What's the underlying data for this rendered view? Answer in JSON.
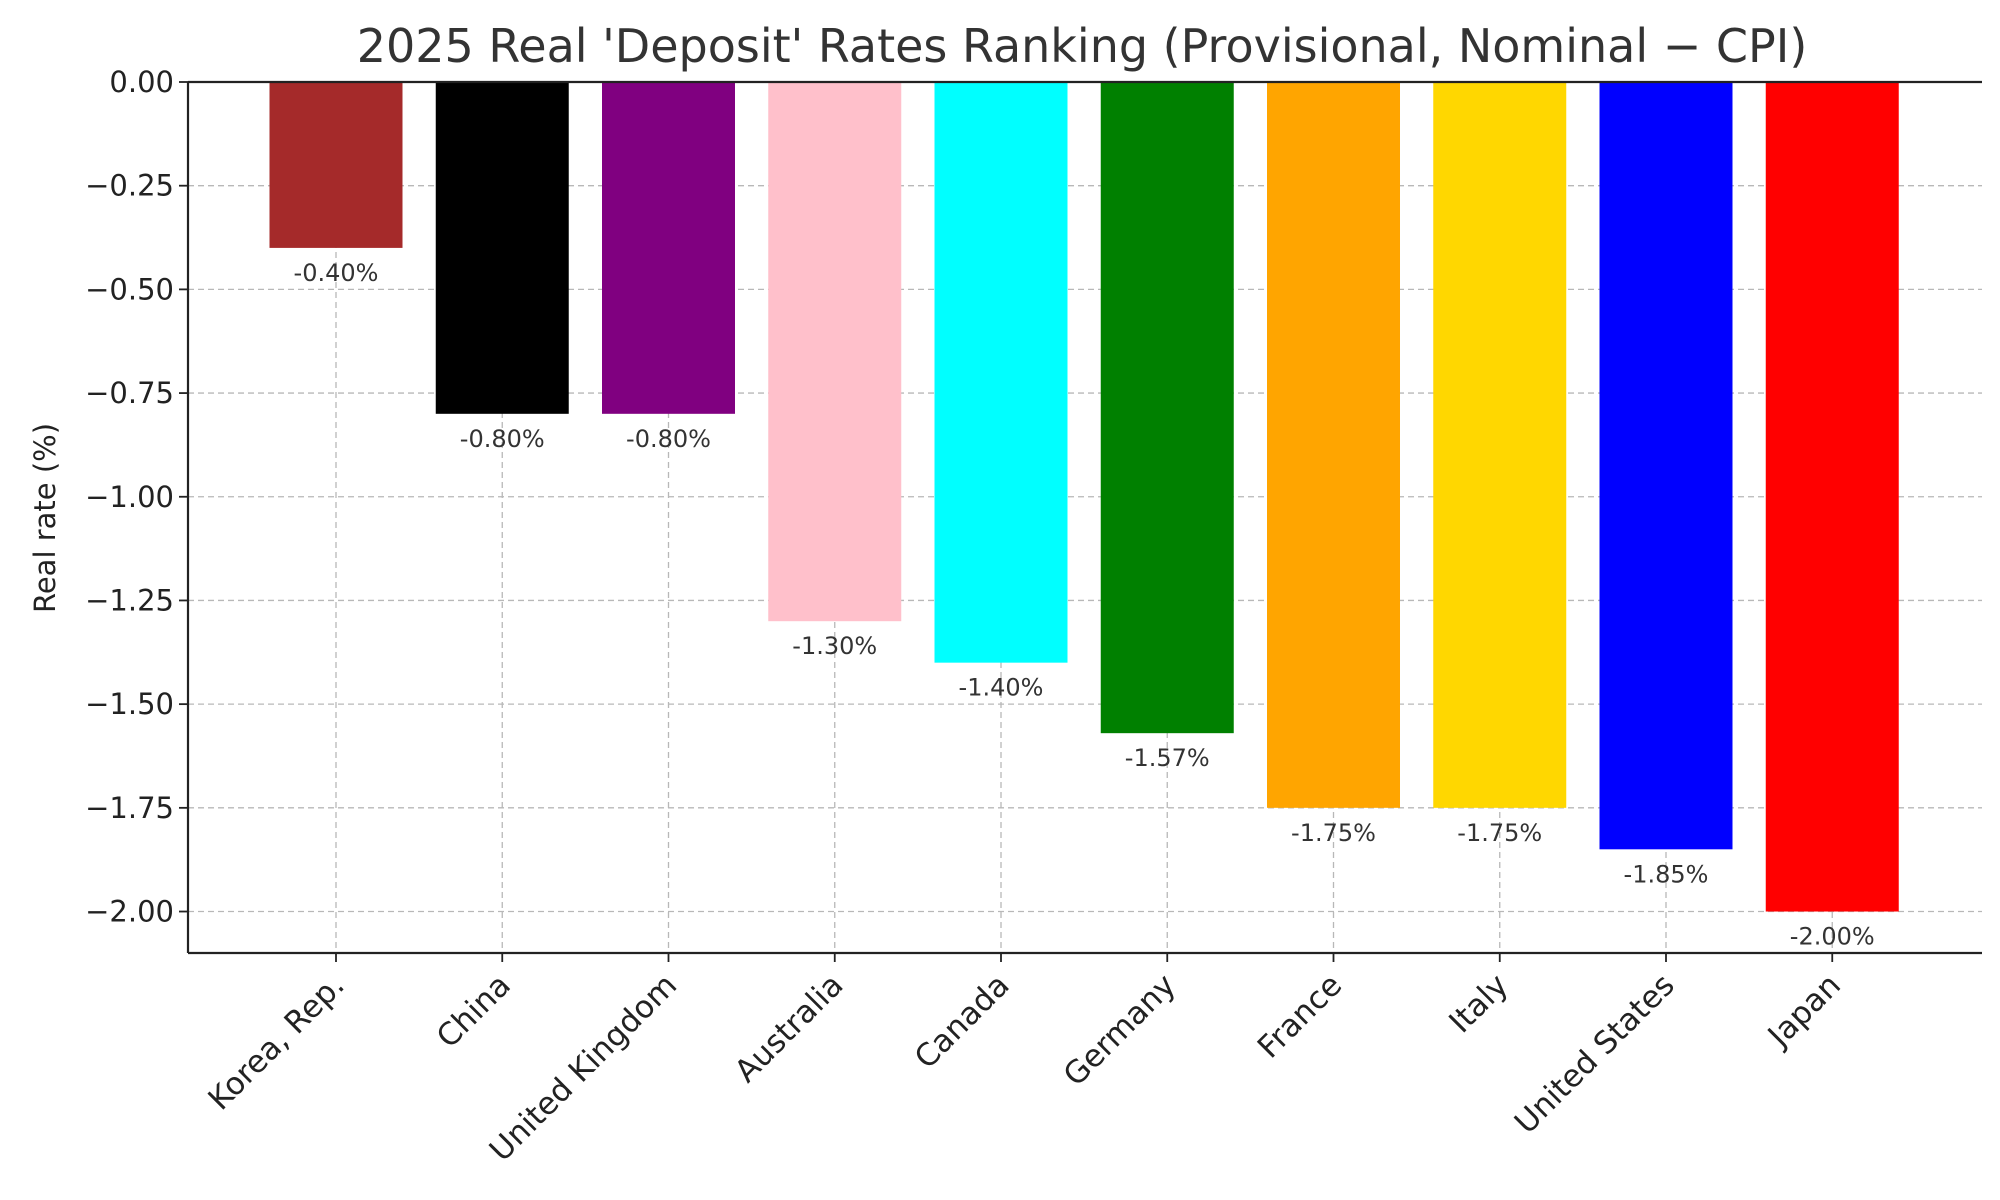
{
  "chart_data": {
    "type": "bar",
    "title": "2025 Real 'Deposit' Rates Ranking (Provisional, Nominal − CPI)",
    "xlabel": "",
    "ylabel": "Real rate (%)",
    "ylim": [
      -2.1,
      0.0
    ],
    "yticks": [
      0.0,
      -0.25,
      -0.5,
      -0.75,
      -1.0,
      -1.25,
      -1.5,
      -1.75,
      -2.0
    ],
    "ytick_labels": [
      "0.00",
      "−0.25",
      "−0.50",
      "−0.75",
      "−1.00",
      "−1.25",
      "−1.50",
      "−1.75",
      "−2.00"
    ],
    "categories": [
      "Korea, Rep.",
      "China",
      "United Kingdom",
      "Australia",
      "Canada",
      "Germany",
      "France",
      "Italy",
      "United States",
      "Japan"
    ],
    "values": [
      -0.4,
      -0.8,
      -0.8,
      -1.3,
      -1.4,
      -1.57,
      -1.75,
      -1.75,
      -1.85,
      -2.0
    ],
    "value_labels": [
      "-0.40%",
      "-0.80%",
      "-0.80%",
      "-1.30%",
      "-1.40%",
      "-1.57%",
      "-1.75%",
      "-1.75%",
      "-1.85%",
      "-2.00%"
    ],
    "colors": [
      "#a52a2a",
      "#000000",
      "#800080",
      "#ffc0cb",
      "#00ffff",
      "#008000",
      "#ffa500",
      "#ffd700",
      "#0000ff",
      "#ff0000"
    ],
    "grid": true,
    "legend": "none"
  }
}
